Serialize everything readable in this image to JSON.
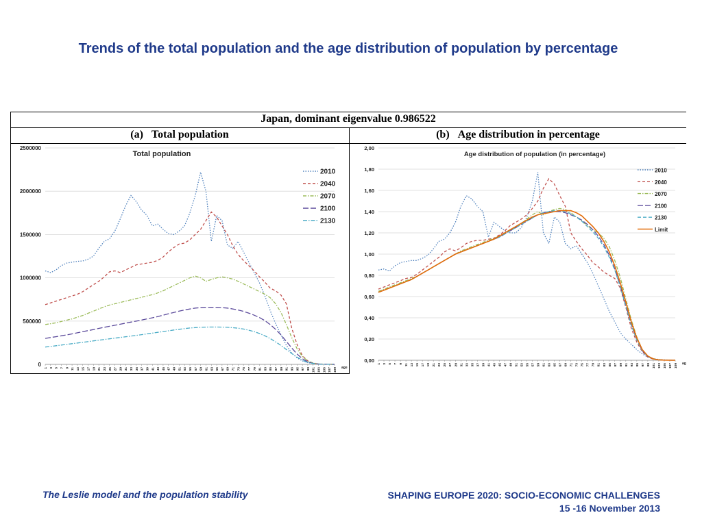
{
  "slide": {
    "title": "Trends of the total population and the age distribution of population by percentage",
    "footer_left": "The Leslie model and the population stability",
    "footer_right_line1": "SHAPING EUROPE 2020: SOCIO-ECONOMIC CHALLENGES",
    "footer_right_line2": "15 -16 November 2013"
  },
  "table": {
    "header": "Japan, dominant eigenvalue 0.986522",
    "col_a": "(a)   Total population",
    "col_b": "(b)   Age distribution in percentage"
  },
  "chart_data": [
    {
      "type": "line",
      "title": "Total population",
      "xlabel": "age",
      "ylabel": "",
      "xlim": [
        1,
        109
      ],
      "ylim": [
        0,
        2500000
      ],
      "yticks": [
        "0",
        "500000",
        "1000000",
        "1500000",
        "2000000",
        "2500000"
      ],
      "grid": true,
      "legend": "right",
      "x": [
        1,
        3,
        5,
        7,
        9,
        11,
        13,
        15,
        17,
        19,
        21,
        23,
        25,
        27,
        29,
        31,
        33,
        35,
        37,
        39,
        41,
        43,
        45,
        47,
        49,
        51,
        53,
        55,
        57,
        59,
        61,
        63,
        65,
        67,
        69,
        71,
        73,
        75,
        77,
        79,
        81,
        83,
        85,
        87,
        89,
        91,
        93,
        95,
        97,
        99,
        101,
        103,
        105,
        107,
        109
      ],
      "series": [
        {
          "name": "2010",
          "color": "#4f81bd",
          "dash": "1.5,2",
          "values": [
            1080000,
            1060000,
            1090000,
            1140000,
            1170000,
            1180000,
            1190000,
            1195000,
            1215000,
            1250000,
            1340000,
            1420000,
            1450000,
            1540000,
            1680000,
            1830000,
            1950000,
            1880000,
            1780000,
            1720000,
            1600000,
            1620000,
            1560000,
            1510000,
            1500000,
            1540000,
            1600000,
            1750000,
            1950000,
            2220000,
            2000000,
            1420000,
            1720000,
            1660000,
            1380000,
            1340000,
            1420000,
            1300000,
            1180000,
            1060000,
            940000,
            790000,
            620000,
            470000,
            340000,
            220000,
            130000,
            75000,
            40000,
            20000,
            10000,
            5000,
            2000,
            1000,
            500
          ]
        },
        {
          "name": "2040",
          "color": "#c0504d",
          "dash": "4,3",
          "values": [
            690000,
            710000,
            730000,
            750000,
            770000,
            790000,
            810000,
            840000,
            880000,
            920000,
            960000,
            1010000,
            1070000,
            1080000,
            1060000,
            1090000,
            1120000,
            1150000,
            1160000,
            1170000,
            1180000,
            1200000,
            1240000,
            1300000,
            1350000,
            1390000,
            1400000,
            1440000,
            1500000,
            1560000,
            1660000,
            1760000,
            1700000,
            1600000,
            1500000,
            1370000,
            1270000,
            1200000,
            1140000,
            1080000,
            1010000,
            950000,
            880000,
            850000,
            800000,
            700000,
            420000,
            230000,
            100000,
            40000,
            15000,
            5000,
            2000,
            800,
            300
          ]
        },
        {
          "name": "2070",
          "color": "#9bbb59",
          "dash": "5,2,1.5,2",
          "values": [
            460000,
            470000,
            480000,
            495000,
            510000,
            525000,
            545000,
            565000,
            590000,
            615000,
            640000,
            665000,
            685000,
            700000,
            715000,
            730000,
            745000,
            760000,
            775000,
            790000,
            805000,
            825000,
            850000,
            880000,
            910000,
            940000,
            970000,
            1000000,
            1020000,
            1000000,
            960000,
            980000,
            1000000,
            1010000,
            1000000,
            985000,
            960000,
            930000,
            900000,
            870000,
            840000,
            810000,
            770000,
            700000,
            600000,
            460000,
            310000,
            180000,
            90000,
            40000,
            15000,
            5000,
            2000,
            800,
            300
          ]
        },
        {
          "name": "2100",
          "color": "#5b4a9b",
          "dash": "8,3",
          "values": [
            300000,
            310000,
            320000,
            330000,
            340000,
            352000,
            365000,
            378000,
            390000,
            402000,
            415000,
            428000,
            440000,
            452000,
            464000,
            476000,
            488000,
            500000,
            512000,
            525000,
            538000,
            552000,
            568000,
            585000,
            600000,
            615000,
            628000,
            640000,
            650000,
            655000,
            658000,
            660000,
            658000,
            655000,
            650000,
            640000,
            628000,
            612000,
            592000,
            568000,
            540000,
            505000,
            460000,
            405000,
            340000,
            265000,
            190000,
            120000,
            65000,
            30000,
            12000,
            4000,
            1500,
            600,
            200
          ]
        },
        {
          "name": "2130",
          "color": "#4bacc6",
          "dash": "6,2,1.5,2",
          "values": [
            200000,
            207000,
            215000,
            223000,
            231000,
            239000,
            247000,
            255000,
            263000,
            271000,
            279000,
            287000,
            295000,
            303000,
            311000,
            319000,
            327000,
            335000,
            343000,
            352000,
            361000,
            370000,
            379000,
            388000,
            397000,
            405000,
            413000,
            420000,
            425000,
            428000,
            430000,
            431000,
            431000,
            430000,
            428000,
            424000,
            418000,
            408000,
            395000,
            378000,
            356000,
            330000,
            298000,
            260000,
            218000,
            172000,
            126000,
            84000,
            48000,
            23000,
            10000,
            4000,
            1500,
            600,
            200
          ]
        }
      ]
    },
    {
      "type": "line",
      "title": "Age distribution of population (in percentage)",
      "xlabel": "age",
      "ylabel": "",
      "xlim": [
        1,
        109
      ],
      "ylim": [
        0,
        2.0
      ],
      "yticks": [
        "0,00",
        "0,20",
        "0,40",
        "0,60",
        "0,80",
        "1,00",
        "1,20",
        "1,40",
        "1,60",
        "1,80",
        "2,00"
      ],
      "grid": true,
      "legend": "right",
      "x": [
        1,
        3,
        5,
        7,
        9,
        11,
        13,
        15,
        17,
        19,
        21,
        23,
        25,
        27,
        29,
        31,
        33,
        35,
        37,
        39,
        41,
        43,
        45,
        47,
        49,
        51,
        53,
        55,
        57,
        59,
        61,
        63,
        65,
        67,
        69,
        71,
        73,
        75,
        77,
        79,
        81,
        83,
        85,
        87,
        89,
        91,
        93,
        95,
        97,
        99,
        101,
        103,
        105,
        107,
        109
      ],
      "series": [
        {
          "name": "2010",
          "color": "#4f81bd",
          "dash": "1.5,2",
          "values": [
            0.85,
            0.86,
            0.84,
            0.89,
            0.92,
            0.93,
            0.94,
            0.94,
            0.96,
            0.99,
            1.05,
            1.12,
            1.14,
            1.2,
            1.3,
            1.45,
            1.55,
            1.52,
            1.45,
            1.4,
            1.16,
            1.3,
            1.26,
            1.22,
            1.2,
            1.2,
            1.25,
            1.35,
            1.5,
            1.77,
            1.2,
            1.1,
            1.35,
            1.3,
            1.1,
            1.05,
            1.08,
            1.0,
            0.92,
            0.82,
            0.7,
            0.58,
            0.46,
            0.36,
            0.26,
            0.2,
            0.15,
            0.1,
            0.06,
            0.03,
            0.015,
            0.008,
            0.004,
            0.002,
            0.001
          ]
        },
        {
          "name": "2040",
          "color": "#c0504d",
          "dash": "4,3",
          "values": [
            0.67,
            0.69,
            0.71,
            0.73,
            0.75,
            0.77,
            0.78,
            0.81,
            0.85,
            0.89,
            0.93,
            0.97,
            1.02,
            1.05,
            1.03,
            1.06,
            1.1,
            1.12,
            1.13,
            1.13,
            1.14,
            1.15,
            1.18,
            1.22,
            1.27,
            1.3,
            1.33,
            1.37,
            1.43,
            1.5,
            1.62,
            1.71,
            1.66,
            1.55,
            1.45,
            1.2,
            1.12,
            1.05,
            0.99,
            0.92,
            0.88,
            0.83,
            0.8,
            0.77,
            0.68,
            0.5,
            0.3,
            0.17,
            0.08,
            0.03,
            0.01,
            0.005,
            0.002,
            0.001,
            0.0005
          ]
        },
        {
          "name": "2070",
          "color": "#9bbb59",
          "dash": "5,2,1.5,2",
          "values": [
            0.65,
            0.67,
            0.69,
            0.71,
            0.73,
            0.75,
            0.77,
            0.79,
            0.82,
            0.85,
            0.88,
            0.91,
            0.94,
            0.97,
            1.0,
            1.03,
            1.05,
            1.07,
            1.09,
            1.11,
            1.13,
            1.15,
            1.17,
            1.2,
            1.23,
            1.26,
            1.29,
            1.33,
            1.37,
            1.4,
            1.37,
            1.4,
            1.42,
            1.43,
            1.42,
            1.39,
            1.35,
            1.31,
            1.27,
            1.23,
            1.2,
            1.15,
            1.07,
            0.94,
            0.78,
            0.58,
            0.38,
            0.22,
            0.1,
            0.04,
            0.015,
            0.005,
            0.002,
            0.001,
            0.0004
          ]
        },
        {
          "name": "2100",
          "color": "#5b4a9b",
          "dash": "8,3",
          "values": [
            0.64,
            0.66,
            0.68,
            0.7,
            0.72,
            0.74,
            0.76,
            0.79,
            0.82,
            0.85,
            0.88,
            0.91,
            0.94,
            0.97,
            1.0,
            1.02,
            1.04,
            1.06,
            1.08,
            1.1,
            1.12,
            1.14,
            1.16,
            1.19,
            1.22,
            1.25,
            1.28,
            1.31,
            1.34,
            1.37,
            1.39,
            1.4,
            1.4,
            1.4,
            1.39,
            1.37,
            1.35,
            1.32,
            1.28,
            1.23,
            1.17,
            1.09,
            0.99,
            0.86,
            0.7,
            0.52,
            0.34,
            0.2,
            0.09,
            0.035,
            0.012,
            0.004,
            0.0015,
            0.0005,
            0.0002
          ]
        },
        {
          "name": "2130",
          "color": "#4bacc6",
          "dash": "5,3",
          "values": [
            0.64,
            0.66,
            0.68,
            0.7,
            0.72,
            0.74,
            0.76,
            0.79,
            0.82,
            0.85,
            0.88,
            0.91,
            0.94,
            0.97,
            1.0,
            1.02,
            1.04,
            1.06,
            1.08,
            1.1,
            1.12,
            1.14,
            1.16,
            1.19,
            1.22,
            1.25,
            1.28,
            1.31,
            1.34,
            1.37,
            1.39,
            1.4,
            1.41,
            1.41,
            1.4,
            1.38,
            1.35,
            1.31,
            1.26,
            1.21,
            1.15,
            1.07,
            0.97,
            0.85,
            0.69,
            0.51,
            0.33,
            0.19,
            0.09,
            0.035,
            0.012,
            0.004,
            0.0015,
            0.0005,
            0.0002
          ]
        },
        {
          "name": "Limit",
          "color": "#e36c09",
          "dash": "",
          "values": [
            0.64,
            0.66,
            0.68,
            0.7,
            0.72,
            0.74,
            0.76,
            0.79,
            0.82,
            0.85,
            0.88,
            0.91,
            0.94,
            0.97,
            1.0,
            1.02,
            1.04,
            1.06,
            1.08,
            1.1,
            1.12,
            1.14,
            1.17,
            1.2,
            1.23,
            1.26,
            1.29,
            1.32,
            1.35,
            1.37,
            1.38,
            1.39,
            1.4,
            1.41,
            1.41,
            1.41,
            1.39,
            1.36,
            1.31,
            1.26,
            1.2,
            1.12,
            1.02,
            0.89,
            0.73,
            0.55,
            0.36,
            0.21,
            0.1,
            0.04,
            0.013,
            0.004,
            0.0015,
            0.0005,
            0.0002
          ]
        }
      ]
    }
  ]
}
